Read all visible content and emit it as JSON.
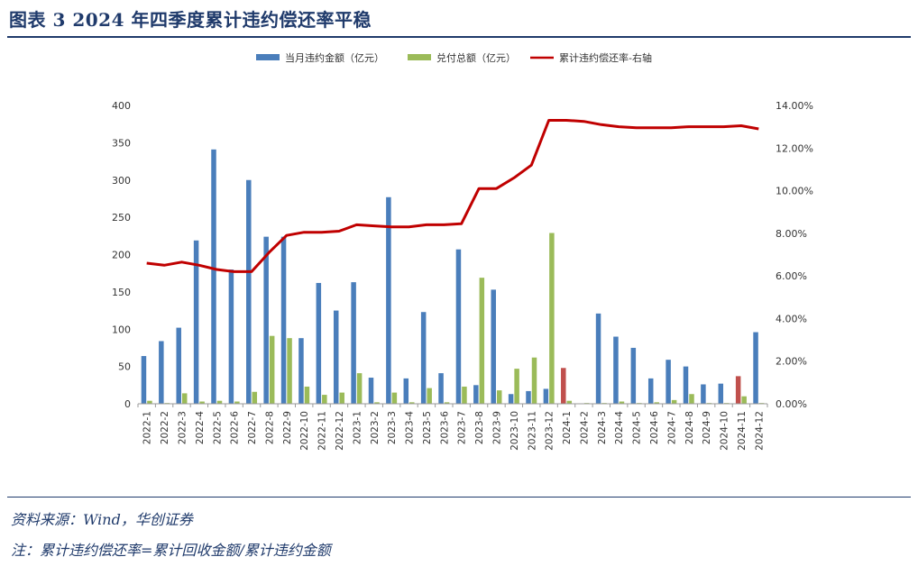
{
  "header": {
    "title": "图表 3   2024 年四季度累计违约偿还率平稳"
  },
  "footer": {
    "source": "资料来源：Wind，华创证券",
    "note": "注：累计违约偿还率=累计回收金额/累计违约金额"
  },
  "chart_data": {
    "type": "bar",
    "categories": [
      "2022-1",
      "2022-2",
      "2022-3",
      "2022-4",
      "2022-5",
      "2022-6",
      "2022-7",
      "2022-8",
      "2022-9",
      "2022-10",
      "2022-11",
      "2022-12",
      "2023-1",
      "2023-2",
      "2023-3",
      "2023-4",
      "2023-5",
      "2023-6",
      "2023-7",
      "2023-8",
      "2023-9",
      "2023-10",
      "2023-11",
      "2023-12",
      "2024-1",
      "2024-2",
      "2024-3",
      "2024-4",
      "2024-5",
      "2024-6",
      "2024-7",
      "2024-8",
      "2024-9",
      "2024-10",
      "2024-11",
      "2024-12"
    ],
    "series": [
      {
        "name": "当月违约金额（亿元）",
        "type": "bar",
        "axis": "left",
        "color": "#4a7ebb",
        "values": [
          64,
          84,
          102,
          219,
          341,
          180,
          300,
          224,
          224,
          88,
          162,
          125,
          163,
          35,
          277,
          34,
          123,
          41,
          207,
          25,
          153,
          13,
          17,
          20,
          48,
          0,
          121,
          90,
          75,
          34,
          59,
          50,
          26,
          27,
          37,
          96
        ],
        "highlight": {
          "index": [
            24,
            34
          ],
          "color": "#c0504d"
        }
      },
      {
        "name": "兑付总额（亿元）",
        "type": "bar",
        "axis": "left",
        "color": "#9bbb59",
        "values": [
          4,
          1,
          14,
          3,
          4,
          3,
          16,
          91,
          88,
          23,
          12,
          15,
          41,
          2,
          15,
          2,
          21,
          2,
          23,
          169,
          18,
          47,
          62,
          229,
          4,
          1,
          1,
          3,
          1,
          2,
          5,
          13,
          1,
          1,
          10,
          1
        ]
      },
      {
        "name": "累计违约偿还率-右轴",
        "type": "line",
        "axis": "right",
        "color": "#c00000",
        "values": [
          6.6,
          6.5,
          6.65,
          6.5,
          6.3,
          6.2,
          6.2,
          7.1,
          7.9,
          8.05,
          8.05,
          8.1,
          8.4,
          8.35,
          8.3,
          8.3,
          8.4,
          8.4,
          8.45,
          10.1,
          10.1,
          10.6,
          11.2,
          13.3,
          13.3,
          13.25,
          13.1,
          13.0,
          12.95,
          12.95,
          12.95,
          13.0,
          13.0,
          13.0,
          13.05,
          12.9
        ]
      }
    ],
    "ylim": [
      0,
      400
    ],
    "yticks": [
      "0",
      "50",
      "100",
      "150",
      "200",
      "250",
      "300",
      "350",
      "400"
    ],
    "y2lim": [
      0,
      14
    ],
    "y2ticks": [
      "0.00%",
      "2.00%",
      "4.00%",
      "6.00%",
      "8.00%",
      "10.00%",
      "12.00%",
      "14.00%"
    ],
    "legend_position": "top",
    "grid": false
  }
}
